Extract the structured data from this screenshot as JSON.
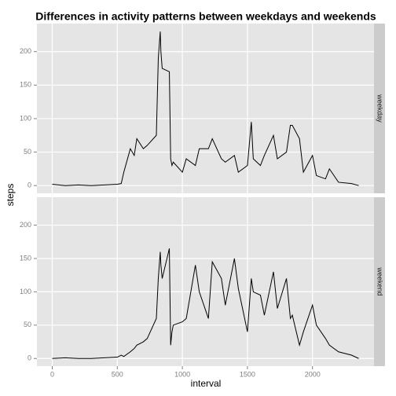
{
  "chart_data": {
    "type": "line",
    "title": "Differences in activity patterns between weekdays and weekends",
    "xlabel": "interval",
    "ylabel": "steps",
    "x": [
      0,
      100,
      200,
      300,
      400,
      500,
      530,
      550,
      600,
      630,
      650,
      700,
      730,
      800,
      815,
      830,
      835,
      845,
      900,
      910,
      920,
      930,
      1000,
      1030,
      1100,
      1130,
      1200,
      1230,
      1300,
      1330,
      1400,
      1430,
      1500,
      1530,
      1545,
      1600,
      1630,
      1700,
      1730,
      1800,
      1830,
      1845,
      1900,
      1930,
      2000,
      2030,
      2100,
      2130,
      2200,
      2300,
      2355
    ],
    "series": [
      {
        "name": "weekday",
        "color": "#000000",
        "values": [
          2,
          0,
          1,
          0,
          1,
          2,
          3,
          20,
          55,
          45,
          70,
          55,
          60,
          75,
          190,
          230,
          200,
          175,
          170,
          40,
          30,
          35,
          20,
          40,
          30,
          55,
          55,
          70,
          40,
          35,
          45,
          20,
          30,
          95,
          40,
          30,
          45,
          75,
          40,
          50,
          90,
          90,
          70,
          20,
          45,
          15,
          10,
          25,
          5,
          3,
          0
        ]
      },
      {
        "name": "weekend",
        "color": "#000000",
        "values": [
          0,
          1,
          0,
          0,
          1,
          2,
          5,
          3,
          10,
          15,
          20,
          25,
          30,
          60,
          120,
          160,
          140,
          120,
          165,
          20,
          40,
          50,
          55,
          60,
          140,
          100,
          60,
          145,
          120,
          80,
          150,
          105,
          40,
          120,
          100,
          95,
          65,
          130,
          75,
          120,
          60,
          65,
          20,
          40,
          80,
          50,
          30,
          20,
          10,
          5,
          0
        ]
      }
    ],
    "xlim": [
      -117.75,
      2472.75
    ],
    "xticks": [
      0,
      500,
      1000,
      1500,
      2000
    ],
    "ylim": [
      -11.5,
      241.9
    ],
    "yticks": [
      0,
      50,
      100,
      150,
      200
    ],
    "grid": true
  }
}
